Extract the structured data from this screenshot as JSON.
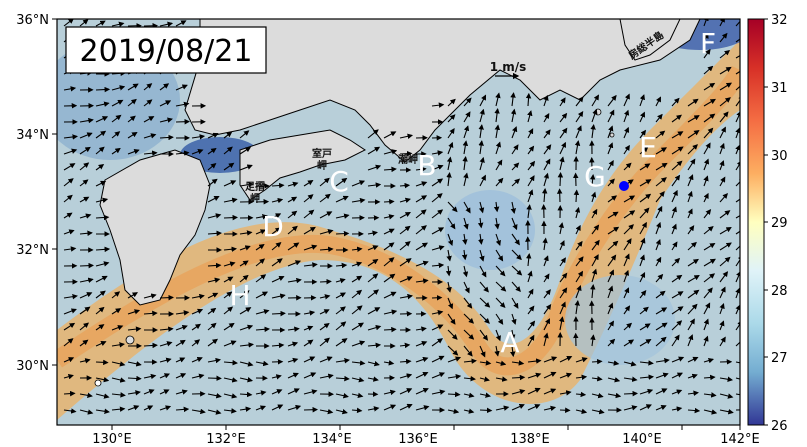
{
  "date_label": "2019/08/21",
  "scale_label": "1 m/s",
  "lat_ticks": [
    "36°N",
    "34°N",
    "32°N",
    "30°N"
  ],
  "lon_ticks": [
    "130°E",
    "132°E",
    "134°E",
    "136°E",
    "138°E",
    "140°E",
    "142°E"
  ],
  "colorbar": {
    "ticks": [
      "32",
      "31",
      "30",
      "29",
      "28",
      "27",
      "26"
    ],
    "colors": [
      "#a50026",
      "#d73027",
      "#f46d43",
      "#fdae61",
      "#fee090",
      "#e0f3f8",
      "#abd9e9",
      "#74add1",
      "#4575b4",
      "#313695"
    ]
  },
  "region_labels": [
    "A",
    "B",
    "C",
    "D",
    "E",
    "F",
    "G",
    "H"
  ],
  "place_names": {
    "muroto": "室戸\n岬",
    "ashizuri": "足摺\n岬",
    "shiono": "潮岬",
    "boso": "房総半島"
  },
  "colors": {
    "land": "#dcdcdc",
    "warm": "#e8b06a",
    "cool": "#a9c6dc",
    "marker": "#0000ff"
  }
}
